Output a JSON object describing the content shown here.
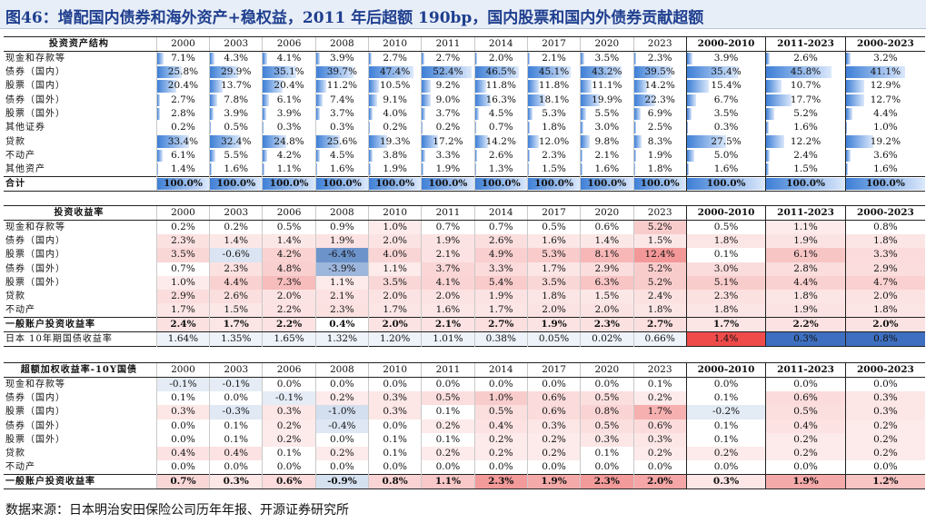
{
  "title": "图46：增配国内债券和海外资产+稳权益，2011 年后超额 190bp，国内股票和国内外债券贡献超额",
  "source": "数据来源：日本明治安田保险公司历年年报、开源证券研究所",
  "colors": {
    "bar_blue": "#3e7fd6",
    "pos_red": "#f07c7c",
    "neg_blue": "#5b86c5",
    "title_blue": "#1f3f8f"
  },
  "tables": [
    {
      "id": "allocation",
      "header": "投资资产结构",
      "columns": [
        "2000",
        "2003",
        "2006",
        "2008",
        "2010",
        "2011",
        "2014",
        "2017",
        "2020",
        "2023",
        "2000-2010",
        "2011-2023",
        "2000-2023"
      ],
      "style": "bars",
      "rows": [
        {
          "label": "现金和存款等",
          "values": [
            "7.1%",
            "4.3%",
            "4.1%",
            "3.9%",
            "2.7%",
            "2.7%",
            "2.0%",
            "2.1%",
            "3.5%",
            "2.3%",
            "3.9%",
            "2.6%",
            "3.2%"
          ]
        },
        {
          "label": "债券（国内）",
          "values": [
            "25.8%",
            "29.9%",
            "35.1%",
            "39.7%",
            "47.4%",
            "52.4%",
            "46.5%",
            "45.1%",
            "43.2%",
            "39.5%",
            "35.4%",
            "45.8%",
            "41.1%"
          ]
        },
        {
          "label": "股票（国内）",
          "values": [
            "20.4%",
            "13.7%",
            "20.4%",
            "11.2%",
            "10.5%",
            "9.2%",
            "11.8%",
            "11.8%",
            "11.1%",
            "14.2%",
            "15.4%",
            "10.7%",
            "12.9%"
          ]
        },
        {
          "label": "债券（国外）",
          "values": [
            "2.7%",
            "7.8%",
            "6.1%",
            "7.4%",
            "9.1%",
            "9.0%",
            "16.3%",
            "18.1%",
            "19.9%",
            "22.3%",
            "6.7%",
            "17.7%",
            "12.7%"
          ]
        },
        {
          "label": "股票（国外）",
          "values": [
            "2.8%",
            "3.9%",
            "3.9%",
            "3.7%",
            "4.0%",
            "3.7%",
            "4.5%",
            "5.3%",
            "5.5%",
            "6.9%",
            "3.5%",
            "5.2%",
            "4.4%"
          ]
        },
        {
          "label": "其他证券",
          "values": [
            "0.2%",
            "0.5%",
            "0.3%",
            "0.3%",
            "0.2%",
            "0.2%",
            "0.7%",
            "1.8%",
            "3.0%",
            "2.5%",
            "0.3%",
            "1.6%",
            "1.0%"
          ]
        },
        {
          "label": "贷款",
          "values": [
            "33.4%",
            "32.4%",
            "24.8%",
            "25.6%",
            "19.3%",
            "17.2%",
            "14.2%",
            "12.0%",
            "9.8%",
            "8.3%",
            "27.5%",
            "12.2%",
            "19.2%"
          ]
        },
        {
          "label": "不动产",
          "values": [
            "6.1%",
            "5.5%",
            "4.2%",
            "4.5%",
            "3.8%",
            "3.3%",
            "2.6%",
            "2.3%",
            "2.1%",
            "1.9%",
            "5.0%",
            "2.4%",
            "3.6%"
          ]
        },
        {
          "label": "其他资产",
          "values": [
            "1.4%",
            "1.6%",
            "1.1%",
            "1.6%",
            "1.9%",
            "1.9%",
            "1.3%",
            "1.5%",
            "1.6%",
            "1.8%",
            "1.6%",
            "1.5%",
            "1.6%"
          ]
        },
        {
          "label": "合计",
          "values": [
            "100.0%",
            "100.0%",
            "100.0%",
            "100.0%",
            "100.0%",
            "100.0%",
            "100.0%",
            "100.0%",
            "100.0%",
            "100.0%",
            "100.0%",
            "100.0%",
            "100.0%"
          ]
        }
      ]
    },
    {
      "id": "returns",
      "header": "投资收益率",
      "columns": [
        "2000",
        "2003",
        "2006",
        "2008",
        "2010",
        "2011",
        "2014",
        "2017",
        "2020",
        "2023",
        "2000-2010",
        "2011-2023",
        "2000-2023"
      ],
      "style": "heat",
      "rows": [
        {
          "label": "现金和存款等",
          "values": [
            "0.2%",
            "0.2%",
            "0.5%",
            "0.9%",
            "1.0%",
            "0.7%",
            "0.7%",
            "0.5%",
            "0.6%",
            "5.2%",
            "0.5%",
            "1.1%",
            "0.8%"
          ]
        },
        {
          "label": "债券（国内）",
          "values": [
            "2.3%",
            "1.4%",
            "1.4%",
            "1.9%",
            "2.0%",
            "1.9%",
            "2.6%",
            "1.6%",
            "1.4%",
            "1.5%",
            "1.8%",
            "1.9%",
            "1.8%"
          ]
        },
        {
          "label": "股票（国内）",
          "values": [
            "3.5%",
            "-0.6%",
            "4.2%",
            "-6.4%",
            "4.0%",
            "2.1%",
            "4.9%",
            "5.3%",
            "8.1%",
            "12.4%",
            "0.1%",
            "6.1%",
            "3.3%"
          ]
        },
        {
          "label": "债券（国外）",
          "values": [
            "0.7%",
            "2.3%",
            "4.8%",
            "-3.9%",
            "1.1%",
            "3.7%",
            "3.3%",
            "1.7%",
            "2.9%",
            "5.2%",
            "3.0%",
            "2.8%",
            "2.9%"
          ]
        },
        {
          "label": "股票（国外）",
          "values": [
            "1.0%",
            "4.4%",
            "7.3%",
            "1.1%",
            "3.5%",
            "4.1%",
            "5.4%",
            "3.5%",
            "6.3%",
            "5.2%",
            "5.1%",
            "4.4%",
            "4.7%"
          ]
        },
        {
          "label": "贷款",
          "values": [
            "2.9%",
            "2.6%",
            "2.0%",
            "2.1%",
            "2.0%",
            "2.0%",
            "1.9%",
            "1.8%",
            "1.5%",
            "2.4%",
            "2.3%",
            "1.8%",
            "2.0%"
          ]
        },
        {
          "label": "不动产",
          "values": [
            "1.7%",
            "1.5%",
            "2.2%",
            "2.3%",
            "1.7%",
            "1.6%",
            "1.7%",
            "2.0%",
            "2.0%",
            "1.8%",
            "1.8%",
            "1.9%",
            "1.8%"
          ]
        },
        {
          "label": "一般账户投资收益率",
          "values": [
            "2.4%",
            "1.7%",
            "2.2%",
            "0.4%",
            "2.0%",
            "2.1%",
            "2.7%",
            "1.9%",
            "2.3%",
            "2.7%",
            "1.7%",
            "2.2%",
            "2.0%"
          ]
        },
        {
          "label": "日本 10年期国债收益率",
          "values": [
            "1.64%",
            "1.35%",
            "1.65%",
            "1.32%",
            "1.20%",
            "1.01%",
            "0.38%",
            "0.05%",
            "0.02%",
            "0.66%",
            "1.4%",
            "0.3%",
            "0.8%"
          ]
        }
      ]
    },
    {
      "id": "excess",
      "header": "超额加权收益率-10Y国债",
      "columns": [
        "2000",
        "2003",
        "2006",
        "2008",
        "2010",
        "2011",
        "2014",
        "2017",
        "2020",
        "2023",
        "2000-2010",
        "2011-2023",
        "2000-2023"
      ],
      "style": "heat",
      "rows": [
        {
          "label": "现金和存款等",
          "values": [
            "-0.1%",
            "-0.1%",
            "0.0%",
            "0.0%",
            "0.0%",
            "0.0%",
            "0.0%",
            "0.0%",
            "0.0%",
            "0.1%",
            "0.0%",
            "0.0%",
            "0.0%"
          ]
        },
        {
          "label": "债券（国内）",
          "values": [
            "0.1%",
            "0.0%",
            "-0.1%",
            "0.2%",
            "0.3%",
            "0.5%",
            "1.0%",
            "0.6%",
            "0.5%",
            "0.2%",
            "0.1%",
            "0.6%",
            "0.3%"
          ]
        },
        {
          "label": "股票（国内）",
          "values": [
            "0.3%",
            "-0.3%",
            "0.3%",
            "-1.0%",
            "0.3%",
            "0.1%",
            "0.5%",
            "0.6%",
            "0.8%",
            "1.7%",
            "-0.2%",
            "0.5%",
            "0.3%"
          ]
        },
        {
          "label": "债券（国外）",
          "values": [
            "0.0%",
            "0.1%",
            "0.2%",
            "-0.4%",
            "0.0%",
            "0.2%",
            "0.4%",
            "0.3%",
            "0.5%",
            "0.6%",
            "0.1%",
            "0.4%",
            "0.2%"
          ]
        },
        {
          "label": "股票（国外）",
          "values": [
            "0.0%",
            "0.1%",
            "0.2%",
            "0.0%",
            "0.1%",
            "0.1%",
            "0.2%",
            "0.2%",
            "0.3%",
            "0.3%",
            "0.1%",
            "0.2%",
            "0.2%"
          ]
        },
        {
          "label": "贷款",
          "values": [
            "0.4%",
            "0.4%",
            "0.1%",
            "0.2%",
            "0.1%",
            "0.2%",
            "0.2%",
            "0.2%",
            "0.1%",
            "0.2%",
            "0.2%",
            "0.2%",
            "0.2%"
          ]
        },
        {
          "label": "不动产",
          "values": [
            "0.0%",
            "0.0%",
            "0.0%",
            "0.0%",
            "0.0%",
            "0.0%",
            "0.0%",
            "0.0%",
            "0.0%",
            "0.0%",
            "0.0%",
            "0.0%",
            "0.0%"
          ]
        },
        {
          "label": "一般账户投资收益率",
          "values": [
            "0.7%",
            "0.3%",
            "0.6%",
            "-0.9%",
            "0.8%",
            "1.1%",
            "2.3%",
            "1.9%",
            "2.3%",
            "2.0%",
            "0.3%",
            "1.9%",
            "1.2%"
          ]
        }
      ]
    }
  ]
}
